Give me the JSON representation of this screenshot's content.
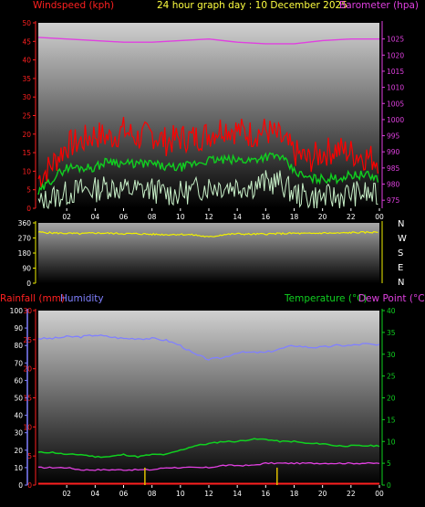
{
  "header": {
    "title": "24 hour graph day : 10 December 2025",
    "windspeed_label": "Windspeed (kph)",
    "barometer_label": "Barometer (hpa)",
    "rainfall_label": "Rainfall (mm)",
    "humidity_label": "Humidity",
    "temperature_label": "Temperature (°C)",
    "dewpoint_label": "Dew Point (°C)",
    "compass": [
      "N",
      "W",
      "S",
      "E",
      "N"
    ]
  },
  "colors": {
    "wind_axis": "#ff2020",
    "gust": "#ff0000",
    "avg_wind": "#10d020",
    "wind_low": "#c8f0c8",
    "barometer": "#e040e0",
    "direction": "#f0f000",
    "rain": "#ff2020",
    "rain_rate": "#e0c000",
    "humidity": "#8080ff",
    "temperature": "#10d020",
    "dewpoint": "#e040e0",
    "title": "#ffff40"
  },
  "chart_data": [
    {
      "type": "line",
      "name": "wind-barometer",
      "x_ticks": [
        "02",
        "04",
        "06",
        "08",
        "10",
        "12",
        "14",
        "16",
        "18",
        "20",
        "22",
        "00"
      ],
      "x_range_hours": [
        0,
        24
      ],
      "y_left_label": "Windspeed (kph)",
      "y_left_ticks": [
        0,
        5,
        10,
        15,
        20,
        25,
        30,
        35,
        40,
        45,
        50
      ],
      "y_left_range": [
        0,
        50
      ],
      "y_right_label": "Barometer (hpa)",
      "y_right_ticks": [
        975,
        980,
        985,
        990,
        995,
        1000,
        1005,
        1010,
        1015,
        1020,
        1025
      ],
      "y_right_range": [
        972.5,
        1030
      ],
      "series": [
        {
          "key": "gust",
          "x": [
            0,
            1,
            2,
            3,
            4,
            5,
            6,
            7,
            8,
            9,
            10,
            11,
            12,
            13,
            14,
            15,
            16,
            17,
            18,
            19,
            20,
            21,
            22,
            23,
            24
          ],
          "values": [
            8,
            12,
            17,
            18,
            20,
            19,
            21,
            19,
            20,
            18,
            19,
            19,
            20,
            22,
            21,
            20,
            21,
            19,
            15,
            13,
            15,
            16,
            15,
            14,
            13
          ]
        },
        {
          "key": "avg",
          "x": [
            0,
            1,
            2,
            3,
            4,
            5,
            6,
            7,
            8,
            9,
            10,
            11,
            12,
            13,
            14,
            15,
            16,
            17,
            18,
            19,
            20,
            21,
            22,
            23,
            24
          ],
          "values": [
            4,
            8,
            11,
            11,
            11,
            13,
            12,
            12,
            12,
            11,
            11,
            12,
            13,
            13,
            13,
            13,
            14,
            14,
            10,
            8,
            8,
            8,
            9,
            9,
            8
          ]
        },
        {
          "key": "low",
          "x": [
            0,
            1,
            2,
            3,
            4,
            5,
            6,
            7,
            8,
            9,
            10,
            11,
            12,
            13,
            14,
            15,
            16,
            17,
            18,
            19,
            20,
            21,
            22,
            23,
            24
          ],
          "values": [
            1,
            3,
            4,
            5,
            5,
            6,
            5,
            5,
            5,
            4,
            4,
            5,
            6,
            6,
            6,
            6,
            7,
            7,
            4,
            3,
            3,
            3,
            4,
            4,
            3
          ]
        },
        {
          "key": "barometer",
          "x": [
            0,
            2,
            4,
            6,
            8,
            10,
            12,
            14,
            16,
            18,
            20,
            22,
            24
          ],
          "values": [
            1025.5,
            1025,
            1024.5,
            1024,
            1024,
            1024.5,
            1025,
            1024,
            1023.5,
            1023.5,
            1024.5,
            1025,
            1025
          ]
        }
      ]
    },
    {
      "type": "line",
      "name": "wind-direction",
      "x_range_hours": [
        0,
        24
      ],
      "y_ticks": [
        0,
        90,
        180,
        270,
        360
      ],
      "y_range": [
        0,
        360
      ],
      "series": [
        {
          "key": "direction",
          "x": [
            0,
            1,
            2,
            3,
            4,
            5,
            6,
            7,
            8,
            9,
            10,
            11,
            12,
            13,
            14,
            15,
            16,
            17,
            18,
            19,
            20,
            21,
            22,
            23,
            24
          ],
          "values": [
            305,
            300,
            298,
            295,
            300,
            298,
            296,
            295,
            292,
            290,
            292,
            288,
            275,
            290,
            295,
            292,
            294,
            296,
            298,
            296,
            300,
            298,
            302,
            303,
            305
          ]
        }
      ]
    },
    {
      "type": "line",
      "name": "temp-humidity-rain",
      "x_ticks": [
        "02",
        "04",
        "06",
        "08",
        "10",
        "12",
        "14",
        "16",
        "18",
        "20",
        "22",
        "00"
      ],
      "x_range_hours": [
        0,
        24
      ],
      "y_left_ticks": [
        0,
        10,
        20,
        30,
        40,
        50,
        60,
        70,
        80,
        90,
        100
      ],
      "y_left_range": [
        0,
        100
      ],
      "y_rain_ticks": [
        0,
        5,
        10,
        15,
        20,
        25,
        30
      ],
      "y_rain_range": [
        0,
        30
      ],
      "y_right_ticks": [
        0,
        5,
        10,
        15,
        20,
        25,
        30,
        35,
        40
      ],
      "y_right_range": [
        0,
        40
      ],
      "series": [
        {
          "key": "humidity",
          "x": [
            0,
            1,
            2,
            3,
            4,
            5,
            6,
            7,
            8,
            9,
            10,
            11,
            12,
            13,
            14,
            15,
            16,
            17,
            18,
            19,
            20,
            21,
            22,
            23,
            24
          ],
          "values": [
            84,
            84,
            85,
            85,
            86,
            85,
            84,
            84,
            84,
            83,
            80,
            75,
            72,
            73,
            76,
            76,
            76,
            78,
            80,
            79,
            79,
            80,
            80,
            81,
            80
          ]
        },
        {
          "key": "temperature",
          "x": [
            0,
            1,
            2,
            3,
            4,
            5,
            6,
            7,
            8,
            9,
            10,
            11,
            12,
            13,
            14,
            15,
            16,
            17,
            18,
            19,
            20,
            21,
            22,
            23,
            24
          ],
          "values": [
            7.5,
            7.5,
            7,
            7,
            6.5,
            6.5,
            7,
            6.5,
            7,
            7,
            8,
            9,
            9.5,
            10,
            10,
            10.5,
            10.5,
            10,
            10,
            9.5,
            9.5,
            9,
            9,
            9,
            9
          ]
        },
        {
          "key": "dewpoint",
          "x": [
            0,
            1,
            2,
            3,
            4,
            5,
            6,
            7,
            8,
            9,
            10,
            11,
            12,
            13,
            14,
            15,
            16,
            17,
            18,
            19,
            20,
            21,
            22,
            23,
            24
          ],
          "values": [
            4,
            4,
            4,
            3.5,
            3.5,
            3.5,
            3.5,
            3.5,
            3.5,
            4,
            4,
            4,
            4,
            4.5,
            4.5,
            4.5,
            5,
            5,
            5,
            5,
            5,
            5,
            5,
            5,
            5
          ]
        },
        {
          "key": "rain_total",
          "x": [
            0,
            24
          ],
          "values": [
            0,
            0
          ]
        },
        {
          "key": "rain_rate_spike",
          "x": [
            7.5,
            16.8
          ],
          "values": [
            3,
            3
          ]
        }
      ]
    }
  ]
}
